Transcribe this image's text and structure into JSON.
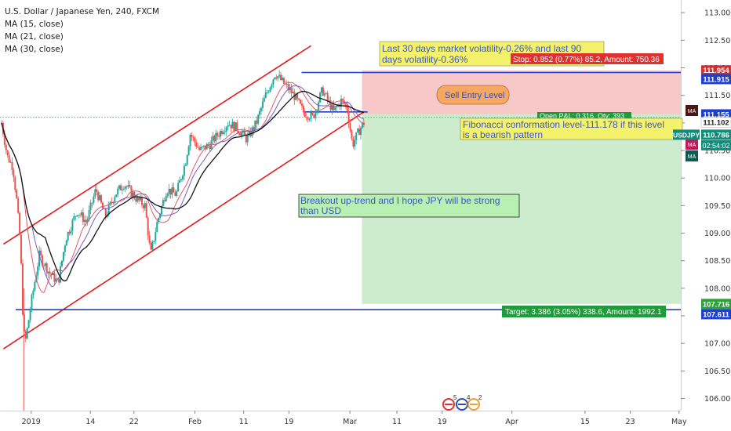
{
  "header": {
    "symbol": "U.S. Dollar / Japanese Yen, 240, FXCM",
    "ma_lines": [
      "MA (15, close)",
      "MA (21, close)",
      "MA (30, close)"
    ]
  },
  "chart_data": {
    "type": "candlestick",
    "x_ticks": [
      "2019",
      "14",
      "22",
      "Feb",
      "11",
      "19",
      "Mar",
      "11",
      "19",
      "Apr",
      "15",
      "23",
      "May"
    ],
    "y_ticks": [
      106.0,
      106.5,
      107.0,
      107.5,
      108.0,
      108.5,
      109.0,
      109.5,
      110.0,
      110.5,
      111.0,
      111.5,
      112.0,
      112.5,
      113.0
    ],
    "ylim": [
      105.78,
      113.23
    ],
    "price_path": [
      [
        0,
        111.0
      ],
      [
        0.6,
        110.4
      ],
      [
        1.2,
        110.2
      ],
      [
        1.6,
        109.6
      ],
      [
        2.0,
        108.8
      ],
      [
        2.3,
        107.3
      ],
      [
        2.5,
        107.0
      ],
      [
        3.2,
        107.8
      ],
      [
        4.0,
        108.6
      ],
      [
        5.0,
        108.3
      ],
      [
        6.0,
        108.1
      ],
      [
        6.8,
        108.9
      ],
      [
        8.0,
        109.4
      ],
      [
        9.0,
        109.2
      ],
      [
        10.0,
        109.8
      ],
      [
        11.0,
        109.3
      ],
      [
        12.0,
        109.7
      ],
      [
        13.0,
        109.9
      ],
      [
        14.4,
        109.6
      ],
      [
        15.2,
        109.5
      ],
      [
        15.8,
        108.6
      ],
      [
        16.5,
        109.2
      ],
      [
        17.5,
        109.8
      ],
      [
        18.5,
        109.7
      ],
      [
        19.5,
        110.3
      ],
      [
        20.0,
        110.8
      ],
      [
        21.0,
        110.5
      ],
      [
        22.0,
        110.6
      ],
      [
        23.0,
        110.8
      ],
      [
        24.0,
        111.0
      ],
      [
        25.0,
        110.9
      ],
      [
        26.0,
        110.7
      ],
      [
        27.0,
        111.0
      ],
      [
        28.0,
        111.5
      ],
      [
        29.0,
        111.9
      ],
      [
        30.0,
        111.7
      ],
      [
        31.0,
        111.5
      ],
      [
        32.0,
        111.2
      ],
      [
        33.0,
        111.1
      ],
      [
        34.0,
        111.6
      ],
      [
        34.6,
        111.4
      ],
      [
        35.2,
        111.2
      ],
      [
        36.0,
        111.4
      ],
      [
        36.6,
        111.3
      ],
      [
        37.2,
        110.6
      ],
      [
        38.0,
        110.9
      ],
      [
        38.4,
        111.0
      ]
    ],
    "moving_averages": [
      {
        "name": "MA (15, close)",
        "color": "#e05a6a"
      },
      {
        "name": "MA (21, close)",
        "color": "#7a5cc4"
      },
      {
        "name": "MA (30, close)",
        "color": "#111111"
      }
    ],
    "channel": {
      "upper": [
        [
          0.2,
          108.8
        ],
        [
          32.8,
          112.4
        ]
      ],
      "lower": [
        [
          0.2,
          106.9
        ],
        [
          38.4,
          111.2
        ]
      ]
    },
    "levels": [
      {
        "price": 111.915,
        "color": "#1f3fcf"
      },
      {
        "price": 107.611,
        "color": "#1f3fcf"
      }
    ],
    "stop_zone": {
      "top": 111.954,
      "bottom": 111.155,
      "from": 38.2
    },
    "target_zone": {
      "top": 111.155,
      "bottom": 107.716,
      "from": 38.2
    },
    "annotations": {
      "volatility": "Last 30 days market volatility-0.26% and last 90 days volatility-0.36%",
      "stop_label": "Stop: 0.852 (0.77%) 85.2, Amount: 750.36",
      "sell_entry": "Sell Entry Level",
      "open_label": "Open P&L: 0.316, Qty: 393",
      "fibonacci": "Fibonacci conformation level-111.178 if this level is a bearish pattern",
      "breakout": "Breakout up-trend and I hope JPY  will be strong than USD",
      "target_label": "Target: 3.386 (3.05%) 338.6, Amount: 1992.1"
    },
    "price_tags": [
      {
        "text": "111.954",
        "price": 111.954,
        "color": "#d32f2f"
      },
      {
        "text": "111.915",
        "price": 111.795,
        "color": "#1f3fcf"
      },
      {
        "text": "111.155",
        "price": 111.155,
        "color": "#1f3fcf"
      },
      {
        "text": "111.102",
        "price": 111.01,
        "color": "#ffffff"
      },
      {
        "text": "110.786",
        "price": 110.786,
        "color": "#0d8d7a"
      },
      {
        "text": "107.716",
        "price": 107.716,
        "color": "#27a33a"
      },
      {
        "text": "107.611",
        "price": 107.53,
        "color": "#1f3fcf"
      }
    ],
    "side_labels": {
      "symbol": "USDJPY",
      "countdown": "02:54:02",
      "ma": "MA"
    },
    "event_icons": [
      "5",
      "4",
      "2"
    ]
  }
}
